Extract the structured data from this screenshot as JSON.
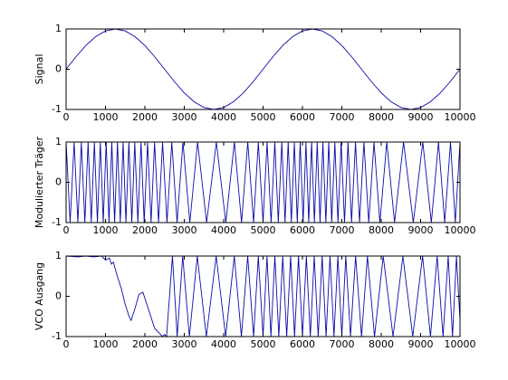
{
  "chart_data": [
    {
      "type": "line",
      "y_label": "Signal",
      "color": "#0a0aa8",
      "xlim": [
        0,
        10000
      ],
      "ylim": [
        -1,
        1
      ],
      "xticks": [
        0,
        1000,
        2000,
        3000,
        4000,
        5000,
        6000,
        7000,
        8000,
        9000,
        10000
      ],
      "yticks": [
        -1,
        0,
        1
      ],
      "x": [
        0,
        250,
        500,
        750,
        1000,
        1250,
        1500,
        1750,
        2000,
        2250,
        2500,
        2750,
        3000,
        3250,
        3500,
        3750,
        4000,
        4250,
        4500,
        4750,
        5000,
        5250,
        5500,
        5750,
        6000,
        6250,
        6500,
        6750,
        7000,
        7250,
        7500,
        7750,
        8000,
        8250,
        8500,
        8750,
        9000,
        9250,
        9500,
        9750,
        10000
      ],
      "values": [
        0,
        0.309,
        0.588,
        0.809,
        0.951,
        1,
        0.951,
        0.809,
        0.588,
        0.309,
        0,
        -0.309,
        -0.588,
        -0.809,
        -0.951,
        -1,
        -0.951,
        -0.809,
        -0.588,
        -0.309,
        0,
        0.309,
        0.588,
        0.809,
        0.951,
        1,
        0.951,
        0.809,
        0.588,
        0.309,
        0,
        -0.309,
        -0.588,
        -0.809,
        -0.951,
        -1,
        -0.951,
        -0.809,
        -0.588,
        -0.309,
        0
      ]
    },
    {
      "type": "line",
      "y_label": "Modulierter Träger",
      "color": "#0a0aa8",
      "xlim": [
        0,
        10000
      ],
      "ylim": [
        -1,
        1
      ],
      "xticks": [
        0,
        1000,
        2000,
        3000,
        4000,
        5000,
        6000,
        7000,
        8000,
        9000,
        10000
      ],
      "yticks": [
        -1,
        0,
        1
      ],
      "x": [
        0,
        102,
        204,
        299,
        387,
        476,
        558,
        638,
        718,
        795,
        869,
        943,
        1017,
        1089,
        1160,
        1232,
        1304,
        1375,
        1447,
        1519,
        1594,
        1668,
        1743,
        1822,
        1902,
        1982,
        2068,
        2157,
        2246,
        2347,
        2449,
        2561,
        2683,
        2817,
        2966,
        3141,
        3338,
        3567,
        3814,
        4055,
        4272,
        4454,
        4612,
        4759,
        4880,
        5000,
        5102,
        5204,
        5299,
        5387,
        5476,
        5558,
        5638,
        5718,
        5795,
        5869,
        5943,
        6017,
        6089,
        6160,
        6232,
        6304,
        6375,
        6447,
        6519,
        6594,
        6668,
        6743,
        6822,
        6902,
        6982,
        7068,
        7157,
        7246,
        7347,
        7449,
        7561,
        7683,
        7817,
        7966,
        8141,
        8338,
        8567,
        8814,
        9055,
        9272,
        9454,
        9612,
        9759,
        9880,
        10000
      ],
      "values": [
        1,
        -1,
        1,
        -1,
        1,
        -1,
        1,
        -1,
        1,
        -1,
        1,
        -1,
        1,
        -1,
        1,
        -1,
        1,
        -1,
        1,
        -1,
        1,
        -1,
        1,
        -1,
        1,
        -1,
        1,
        -1,
        1,
        -1,
        1,
        -1,
        1,
        -1,
        1,
        -1,
        1,
        -1,
        1,
        -1,
        1,
        -1,
        1,
        -1,
        1,
        -1,
        1,
        -1,
        1,
        -1,
        1,
        -1,
        1,
        -1,
        1,
        -1,
        1,
        -1,
        1,
        -1,
        1,
        -1,
        1,
        -1,
        1,
        -1,
        1,
        -1,
        1,
        -1,
        1,
        -1,
        1,
        -1,
        1,
        -1,
        1,
        -1,
        1,
        -1,
        1,
        -1,
        1,
        -1,
        1,
        -1,
        1,
        -1,
        1,
        -1,
        1
      ]
    },
    {
      "type": "line",
      "y_label": "VCO Ausgang",
      "color": "#0a0aa8",
      "xlim": [
        0,
        10000
      ],
      "ylim": [
        -1,
        1
      ],
      "xticks": [
        0,
        1000,
        2000,
        3000,
        4000,
        5000,
        6000,
        7000,
        8000,
        9000,
        10000
      ],
      "yticks": [
        -1,
        0,
        1
      ],
      "x": [
        0,
        300,
        500,
        700,
        900,
        1000,
        1100,
        1150,
        1200,
        1300,
        1400,
        1500,
        1600,
        1650,
        1750,
        1850,
        1950,
        2050,
        2150,
        2250,
        2350,
        2450,
        2500,
        2550,
        2700,
        2820,
        2960,
        3130,
        3330,
        3560,
        3810,
        4050,
        4270,
        4450,
        4610,
        4760,
        4880,
        5000,
        5100,
        5200,
        5300,
        5400,
        5500,
        5600,
        5700,
        5800,
        5900,
        6000,
        6100,
        6200,
        6300,
        6400,
        6500,
        6600,
        6700,
        6800,
        6900,
        7000,
        7100,
        7220,
        7350,
        7500,
        7650,
        7830,
        8050,
        8300,
        8550,
        8800,
        9050,
        9250,
        9420,
        9570,
        9700,
        9810,
        9910,
        10000
      ],
      "values": [
        1,
        0.98,
        1,
        0.98,
        1,
        0.9,
        0.95,
        0.8,
        0.85,
        0.5,
        0.2,
        -0.2,
        -0.5,
        -0.6,
        -0.3,
        0.05,
        0.1,
        -0.2,
        -0.5,
        -0.8,
        -0.9,
        -1,
        -0.95,
        -1,
        1,
        -1,
        1,
        -1,
        1,
        -1,
        1,
        -1,
        1,
        -1,
        1,
        -1,
        1,
        -1,
        1,
        -1,
        1,
        -1,
        1,
        -1,
        1,
        -1,
        1,
        -1,
        1,
        -1,
        1,
        -1,
        1,
        -1,
        1,
        -1,
        1,
        -1,
        1,
        -1,
        1,
        -1,
        1,
        -1,
        1,
        -1,
        1,
        -1,
        1,
        -1,
        1,
        -1,
        1,
        -1,
        1,
        -0.6
      ]
    }
  ]
}
